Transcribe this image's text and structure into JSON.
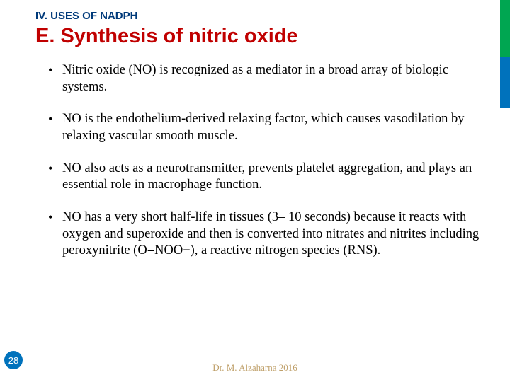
{
  "section_label": "IV. USES OF NADPH",
  "title": "E. Synthesis of nitric oxide",
  "bullets": [
    "Nitric oxide (NO) is recognized as a mediator in a broad array of biologic systems.",
    "NO is the endothelium-derived relaxing factor, which causes vasodilation by relaxing vascular smooth muscle.",
    "NO also acts as a neurotransmitter, prevents platelet aggregation, and plays an essential role in macrophage function.",
    "NO has a very short half-life in tissues (3– 10 seconds) because it reacts with oxygen and superoxide and then is converted into nitrates and nitrites including peroxynitrite (O=NOO−), a reactive nitrogen species (RNS)."
  ],
  "page_number": "28",
  "footer": "Dr. M. Alzaharna 2016",
  "colors": {
    "section_label": "#003a7a",
    "title": "#c00000",
    "stripe_green": "#00a651",
    "stripe_blue": "#0072bc",
    "badge_bg": "#0072bc",
    "footer": "#bfa06a"
  }
}
